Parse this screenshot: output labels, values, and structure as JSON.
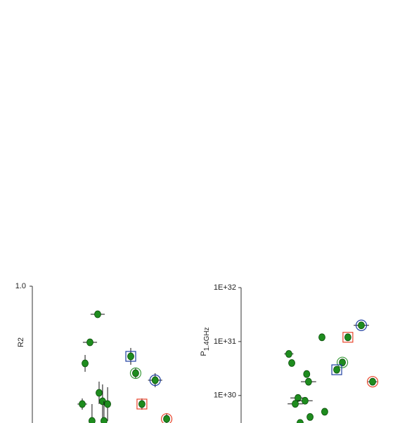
{
  "chart_data": [
    {
      "type": "scatter",
      "ylabel": "R2",
      "x": [
        0.415,
        0.366,
        0.335,
        0.625,
        0.656,
        0.78,
        0.424,
        0.317,
        0.446,
        0.478,
        0.696,
        0.853,
        0.379,
        0.455
      ],
      "values": [
        0.9,
        0.8,
        0.725,
        0.75,
        0.69,
        0.665,
        0.62,
        0.58,
        0.59,
        0.58,
        0.58,
        0.527,
        0.52,
        0.52
      ],
      "xerr": [
        0.045,
        0.045,
        0.01,
        0.02,
        0.02,
        0.045,
        0.02,
        0.03,
        0.02,
        0.02,
        0.02,
        0.01,
        0.02,
        0.02
      ],
      "yerr": [
        0.01,
        0.01,
        0.03,
        0.03,
        0.02,
        0.025,
        0.04,
        0.02,
        0.06,
        0.06,
        0.02,
        0.02,
        0.06,
        0.07
      ],
      "rings": [
        null,
        null,
        null,
        {
          "shape": "square",
          "color": "#1f3fa0"
        },
        {
          "shape": "circle",
          "color": "#3a9a3a"
        },
        {
          "shape": "circle",
          "color": "#1f3fa0"
        },
        null,
        null,
        null,
        null,
        {
          "shape": "square",
          "color": "#e8442a"
        },
        {
          "shape": "circle",
          "color": "#e8442a"
        },
        null,
        null
      ],
      "color": "#1e8c1e",
      "xlim": [
        0,
        1
      ],
      "ylim": [
        0.5,
        1.0
      ],
      "yticks": [
        {
          "value": 1.0,
          "label": "1.0"
        }
      ]
    },
    {
      "type": "scatter",
      "ylabel": "P",
      "ylabel_subscript": "1.4GHz",
      "log_y": true,
      "x": [
        0.53,
        0.7,
        0.788,
        0.313,
        0.332,
        0.664,
        0.627,
        0.43,
        0.442,
        0.862,
        0.373,
        0.419,
        0.355,
        0.548,
        0.452,
        0.387
      ],
      "values": [
        1.2e+31,
        1.2e+31,
        2e+31,
        5.9e+30,
        4e+30,
        4.1e+30,
        3e+30,
        2.5e+30,
        1.8e+30,
        1.8e+30,
        9e+29,
        8e+29,
        7e+29,
        5e+29,
        4e+29,
        3.1e+29
      ],
      "xerr": [
        0.02,
        0.02,
        0.05,
        0.03,
        0.01,
        0.02,
        0.02,
        0.02,
        0.05,
        0.03,
        0.05,
        0.05,
        0.05,
        0.02,
        0.02,
        0.02
      ],
      "rings": [
        null,
        {
          "shape": "square",
          "color": "#e8442a"
        },
        {
          "shape": "circle",
          "color": "#1f3fa0"
        },
        null,
        null,
        {
          "shape": "circle",
          "color": "#3a9a3a"
        },
        {
          "shape": "square",
          "color": "#1f3fa0"
        },
        null,
        null,
        {
          "shape": "circle",
          "color": "#e8442a"
        },
        null,
        null,
        null,
        null,
        null,
        null
      ],
      "color": "#1e8c1e",
      "xlim": [
        0,
        1
      ],
      "ylim": [
        3e+29,
        1e+32
      ],
      "yticks": [
        {
          "value": 1e+32,
          "label": "1E+32"
        },
        {
          "value": 1e+31,
          "label": "1E+31"
        },
        {
          "value": 1e+30,
          "label": "1E+30"
        }
      ]
    }
  ]
}
